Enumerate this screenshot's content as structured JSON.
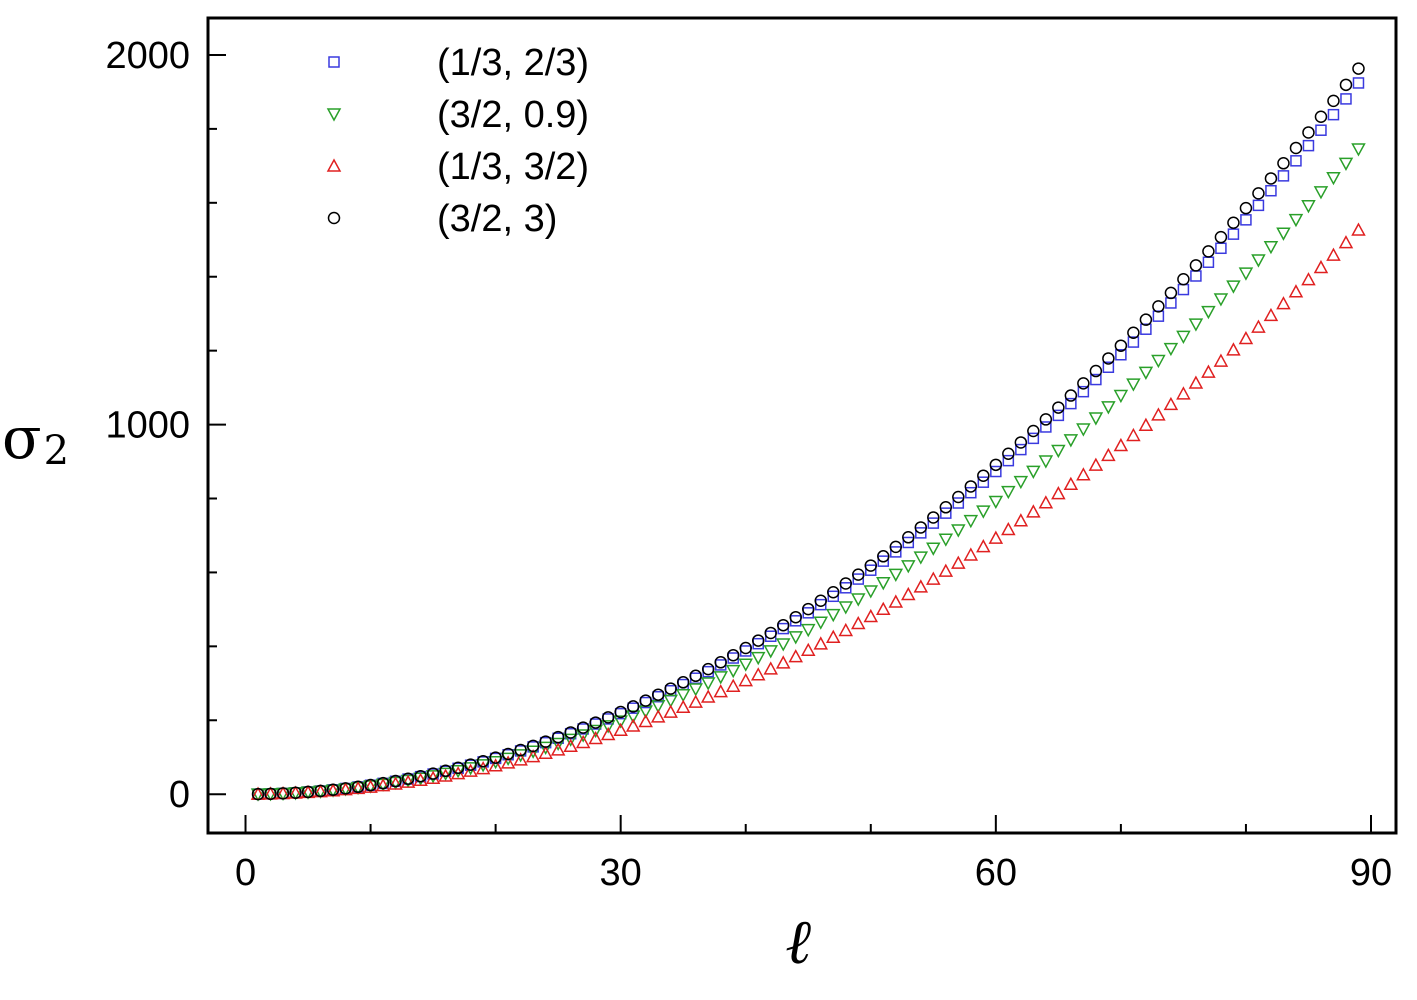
{
  "chart_data": {
    "type": "scatter",
    "title": "",
    "xlabel": "ℓ",
    "ylabel_main": "σ",
    "ylabel_sub": "2",
    "xlim": [
      -3,
      92
    ],
    "ylim": [
      -105,
      2100
    ],
    "xticks_major": [
      0,
      30,
      60,
      90
    ],
    "xtick_labels": [
      "0",
      "30",
      "60",
      "90"
    ],
    "xticks_minor": [
      10,
      20,
      40,
      50,
      70,
      80
    ],
    "yticks_major": [
      0,
      1000,
      2000
    ],
    "ytick_labels": [
      "0",
      "1000",
      "2000"
    ],
    "yticks_minor": [
      200,
      400,
      600,
      800,
      1200,
      1400,
      1600,
      1800
    ],
    "legend_position": "top-left",
    "x": [
      1,
      2,
      3,
      4,
      5,
      6,
      7,
      8,
      9,
      10,
      11,
      12,
      13,
      14,
      15,
      16,
      17,
      18,
      19,
      20,
      21,
      22,
      23,
      24,
      25,
      26,
      27,
      28,
      29,
      30,
      31,
      32,
      33,
      34,
      35,
      36,
      37,
      38,
      39,
      40,
      41,
      42,
      43,
      44,
      45,
      46,
      47,
      48,
      49,
      50,
      51,
      52,
      53,
      54,
      55,
      56,
      57,
      58,
      59,
      60,
      61,
      62,
      63,
      64,
      65,
      66,
      67,
      68,
      69,
      70,
      71,
      72,
      73,
      74,
      75,
      76,
      77,
      78,
      79,
      80,
      81,
      82,
      83,
      84,
      85,
      86,
      87,
      88,
      89
    ],
    "series": [
      {
        "name": "(1/3, 2/3)",
        "marker": "square",
        "color": "#3a3adf",
        "values": [
          0.2,
          1,
          2.2,
          3.9,
          6.1,
          8.7,
          11.9,
          15.5,
          19.6,
          24.2,
          29.3,
          34.9,
          40.9,
          47.5,
          54.5,
          62,
          70,
          78.4,
          87.4,
          96.8,
          106.7,
          117.1,
          128,
          139.4,
          151.3,
          163.6,
          176.5,
          189.8,
          203.6,
          217.9,
          232.7,
          247.9,
          263.7,
          279.9,
          296.6,
          313.8,
          331.5,
          349.7,
          368.4,
          387.5,
          407.2,
          427.3,
          448,
          469.1,
          490.7,
          512.8,
          535.4,
          558.4,
          582,
          606,
          630.5,
          655.5,
          681,
          707,
          733.4,
          760.4,
          787.8,
          815.7,
          844.1,
          873,
          902.4,
          932.3,
          962.7,
          993.5,
          1024.9,
          1056.7,
          1089,
          1121.8,
          1155.1,
          1188.9,
          1223.2,
          1258,
          1293.3,
          1329,
          1365.3,
          1402,
          1439.2,
          1477,
          1515.2,
          1553.9,
          1593.1,
          1632.7,
          1672.9,
          1713.6,
          1754.7,
          1796.4,
          1838.5,
          1881.1,
          1924.2
        ]
      },
      {
        "name": "(3/2, 0.9)",
        "marker": "triangle-down",
        "color": "#2aa02a",
        "values": [
          0.2,
          0.9,
          2,
          3.5,
          5.5,
          7.9,
          10.8,
          14.1,
          17.8,
          22,
          26.6,
          31.6,
          37.1,
          43,
          49.4,
          56.2,
          63.5,
          71.1,
          79.3,
          87.8,
          96.8,
          106.2,
          116.1,
          126.5,
          137.2,
          148.4,
          160.1,
          172.2,
          184.7,
          197.7,
          211.1,
          224.9,
          239.2,
          253.9,
          269.1,
          284.7,
          300.8,
          317.3,
          334.2,
          351.6,
          369.4,
          387.7,
          406.4,
          425.5,
          445.1,
          465.2,
          485.7,
          506.6,
          528,
          549.8,
          572,
          594.7,
          617.8,
          641.4,
          665.4,
          689.8,
          714.7,
          740,
          765.8,
          792,
          818.7,
          845.8,
          873.3,
          901.3,
          929.8,
          958.6,
          987.9,
          1017.7,
          1047.9,
          1078.5,
          1109.6,
          1141.2,
          1173.2,
          1205.6,
          1238.5,
          1271.8,
          1305.6,
          1339.8,
          1374.5,
          1409.6,
          1445.2,
          1481.2,
          1517.6,
          1554.5,
          1591.9,
          1629.7,
          1667.9,
          1706.6,
          1745.7
        ]
      },
      {
        "name": "(1/3, 3/2)",
        "marker": "triangle-up",
        "color": "#e02020",
        "values": [
          0.2,
          0.8,
          1.7,
          3.1,
          4.8,
          6.9,
          9.4,
          12.3,
          15.6,
          19.2,
          23.3,
          27.7,
          32.5,
          37.6,
          43.2,
          49.2,
          55.5,
          62.3,
          69.3,
          76.8,
          84.7,
          92.9,
          101.6,
          110.6,
          120,
          129.8,
          140,
          150.6,
          161.5,
          172.9,
          184.6,
          196.7,
          209.2,
          222.1,
          235.3,
          249,
          263,
          277.4,
          292.2,
          307.4,
          323,
          339,
          355.4,
          372.1,
          389.3,
          406.8,
          424.7,
          443,
          461.7,
          480.8,
          500.3,
          520.1,
          540.3,
          561,
          582,
          603.4,
          625.1,
          647.3,
          669.9,
          692.8,
          716.1,
          739.8,
          763.9,
          788.4,
          813.2,
          838.5,
          864.1,
          890.2,
          916.6,
          943.4,
          970.6,
          998.2,
          1026.1,
          1054.5,
          1083.2,
          1112.4,
          1141.9,
          1171.8,
          1202.1,
          1232.8,
          1263.8,
          1295.3,
          1327.1,
          1359.4,
          1392,
          1425,
          1458.4,
          1492.2,
          1526.4
        ]
      },
      {
        "name": "(3/2, 3)",
        "marker": "circle",
        "color": "#000000",
        "values": [
          0.2,
          1,
          2.2,
          4,
          6.2,
          8.9,
          12.1,
          15.8,
          20,
          24.7,
          29.9,
          35.6,
          41.8,
          48.5,
          55.6,
          63.3,
          71.4,
          80,
          89.2,
          98.8,
          108.9,
          119.5,
          130.7,
          142.3,
          154.4,
          167,
          180.1,
          193.7,
          207.8,
          222.4,
          237.5,
          253.1,
          269.2,
          285.7,
          302.8,
          320.3,
          338.4,
          356.9,
          376,
          395.5,
          415.6,
          436.2,
          457.2,
          478.8,
          500.8,
          523.4,
          546.4,
          570,
          594,
          618.5,
          643.6,
          669.1,
          695.1,
          721.7,
          748.7,
          776.2,
          804.1,
          832.6,
          861.6,
          891.1,
          921.1,
          951.6,
          982.6,
          1014,
          1046,
          1078.5,
          1111.5,
          1144.9,
          1178.9,
          1213.4,
          1248.4,
          1283.8,
          1319.8,
          1356.2,
          1393.2,
          1430.6,
          1468.6,
          1507.1,
          1546,
          1585.5,
          1625.5,
          1665.9,
          1706.9,
          1748.4,
          1790.3,
          1832.8,
          1875.8,
          1919.2,
          1963.2
        ]
      }
    ]
  }
}
